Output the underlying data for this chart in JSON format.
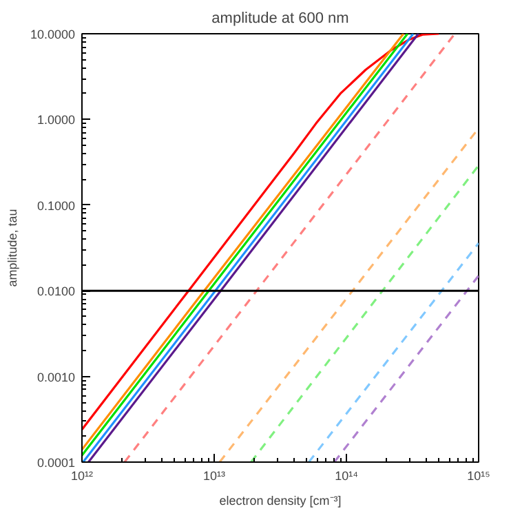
{
  "chart_data": {
    "type": "line",
    "title": "amplitude at 600 nm",
    "xlabel": "electron density [cm⁻³]",
    "ylabel": "amplitude, tau",
    "log": "xy",
    "grid": false,
    "marker": "none",
    "xlim": [
      1000000000000.0,
      1000000000000000.0
    ],
    "ylim": [
      0.0001,
      10
    ],
    "xticks": [
      {
        "value": 1000000000000.0,
        "label": "10¹²"
      },
      {
        "value": 10000000000000.0,
        "label": "10¹³"
      },
      {
        "value": 100000000000000.0,
        "label": "10¹⁴"
      },
      {
        "value": 1000000000000000.0,
        "label": "10¹⁵"
      }
    ],
    "yticks": [
      {
        "value": 0.0001,
        "label": "0.0001"
      },
      {
        "value": 0.001,
        "label": "0.0010"
      },
      {
        "value": 0.01,
        "label": "0.0100"
      },
      {
        "value": 0.1,
        "label": "0.1000"
      },
      {
        "value": 1,
        "label": "1.0000"
      },
      {
        "value": 10,
        "label": "10.0000"
      }
    ],
    "ref_lines": [
      {
        "axis": "y",
        "value": 0.01,
        "color": "#000000",
        "line_style": "solid"
      }
    ],
    "series": [
      {
        "color": "#ff0000",
        "line_style": "solid",
        "x": [
          1000000000000.0,
          6400000000000.0,
          40000000000000.0,
          59000000000000.0,
          90000000000000.0,
          140000000000000.0,
          220000000000000.0,
          300000000000000.0,
          380000000000000.0,
          500000000000000.0
        ],
        "values": [
          0.00024,
          0.01,
          0.4,
          0.9,
          2.0,
          3.8,
          6.5,
          8.6,
          9.8,
          10
        ]
      },
      {
        "color": "#ff8c00",
        "line_style": "solid",
        "x": [
          1000000000000.0,
          8400000000000.0,
          270000000000000.0
        ],
        "values": [
          0.00014,
          0.01,
          10
        ]
      },
      {
        "color": "#00e000",
        "line_style": "solid",
        "x": [
          1000000000000.0,
          9100000000000.0,
          290000000000000.0
        ],
        "values": [
          0.00012,
          0.01,
          10
        ]
      },
      {
        "color": "#1e90ff",
        "line_style": "solid",
        "x": [
          1020000000000.0,
          10200000000000.0,
          320000000000000.0
        ],
        "values": [
          0.0001,
          0.01,
          10
        ]
      },
      {
        "color": "#5b1a8c",
        "line_style": "solid",
        "x": [
          1120000000000.0,
          11200000000000.0,
          350000000000000.0
        ],
        "values": [
          0.0001,
          0.01,
          10
        ]
      },
      {
        "color": "#ff8080",
        "line_style": "dashed",
        "x": [
          2100000000000.0,
          660000000000000.0
        ],
        "values": [
          0.0001,
          10
        ]
      },
      {
        "color": "#ffb870",
        "line_style": "dashed",
        "x": [
          11000000000000.0,
          1000000000000000.0
        ],
        "values": [
          0.0001,
          0.79
        ]
      },
      {
        "color": "#80f080",
        "line_style": "dashed",
        "x": [
          19000000000000.0,
          1000000000000000.0
        ],
        "values": [
          0.0001,
          0.29
        ]
      },
      {
        "color": "#80c8ff",
        "line_style": "dashed",
        "x": [
          52000000000000.0,
          1000000000000000.0
        ],
        "values": [
          0.0001,
          0.036
        ]
      },
      {
        "color": "#b080d0",
        "line_style": "dashed",
        "x": [
          81000000000000.0,
          1000000000000000.0
        ],
        "values": [
          0.0001,
          0.015
        ]
      }
    ]
  }
}
